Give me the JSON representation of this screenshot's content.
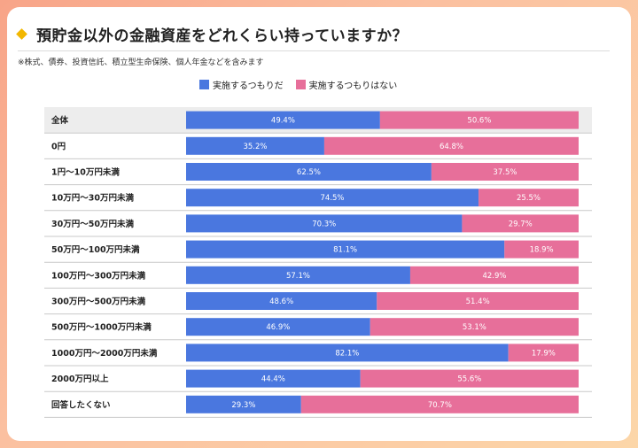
{
  "title": "預貯金以外の金融資産をどれくらい持っていますか？",
  "note": "※株式、債券、投資信託、積立型生命保険、個人年金などを含みます",
  "colors": {
    "series1": "#4a77df",
    "series2": "#e76f9a"
  },
  "chart_data": {
    "type": "bar",
    "orientation": "horizontal",
    "stacked": true,
    "unit": "%",
    "categories": [
      "全体",
      "0円",
      "1円〜10万円未満",
      "10万円〜30万円未満",
      "30万円〜50万円未満",
      "50万円〜100万円未満",
      "100万円〜300万円未満",
      "300万円〜500万円未満",
      "500万円〜1000万円未満",
      "1000万円〜2000万円未満",
      "2000万円以上",
      "回答したくない"
    ],
    "series": [
      {
        "name": "実施するつもりだ",
        "values": [
          49.4,
          35.2,
          62.5,
          74.5,
          70.3,
          81.1,
          57.1,
          48.6,
          46.9,
          82.1,
          44.4,
          29.3
        ]
      },
      {
        "name": "実施するつもりはない",
        "values": [
          50.6,
          64.8,
          37.5,
          25.5,
          29.7,
          18.9,
          42.9,
          51.4,
          53.1,
          17.9,
          55.6,
          70.7
        ]
      }
    ],
    "labels": [
      [
        "49.4%",
        "50.6%"
      ],
      [
        "35.2%",
        "64.8%"
      ],
      [
        "62.5%",
        "37.5%"
      ],
      [
        "74.5%",
        "25.5%"
      ],
      [
        "70.3%",
        "29.7%"
      ],
      [
        "81.1%",
        "18.9%"
      ],
      [
        "57.1%",
        "42.9%"
      ],
      [
        "48.6%",
        "51.4%"
      ],
      [
        "46.9%",
        "53.1%"
      ],
      [
        "82.1%",
        "17.9%"
      ],
      [
        "44.4%",
        "55.6%"
      ],
      [
        "29.3%",
        "70.7%"
      ]
    ],
    "xlim": [
      0,
      100
    ]
  }
}
